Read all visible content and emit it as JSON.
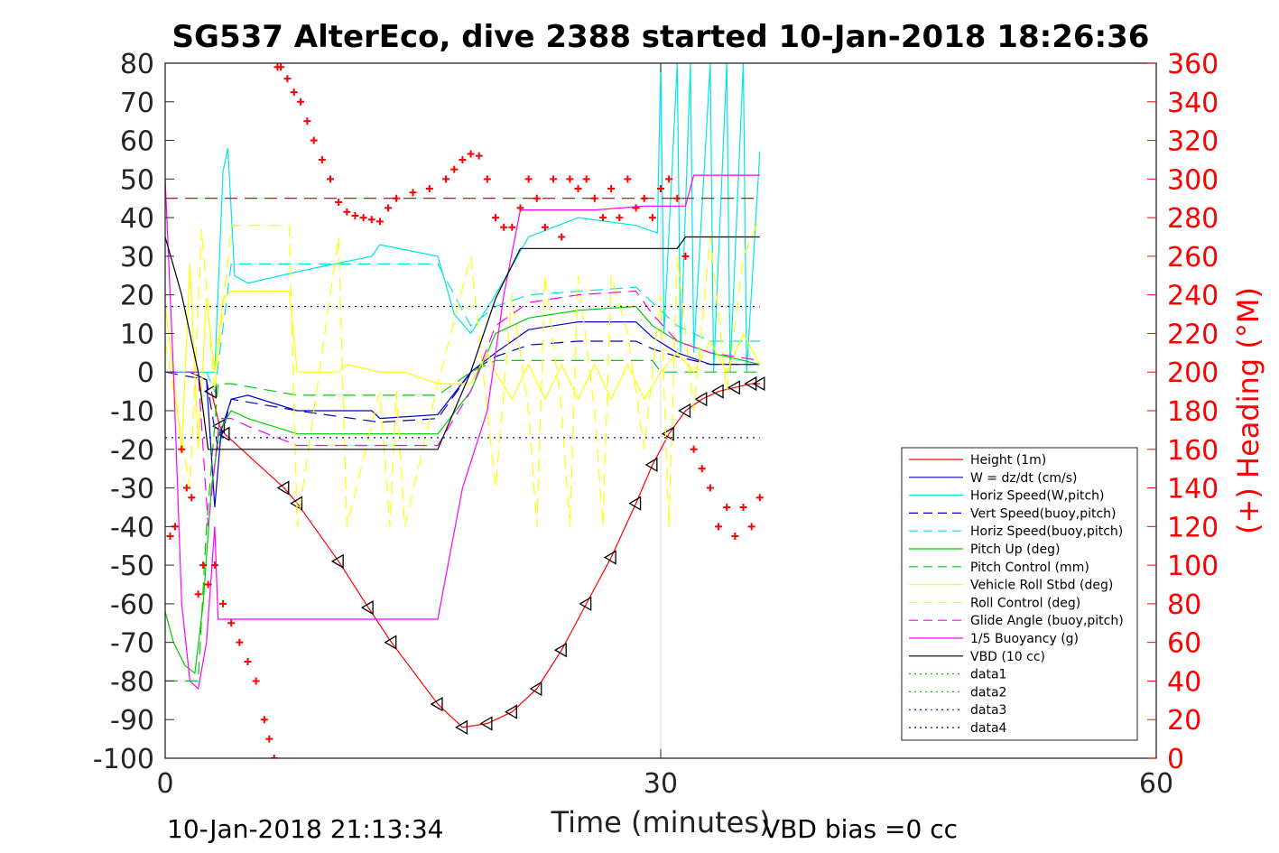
{
  "page": {
    "footer_left": "10-Jan-2018 21:13:34",
    "footer_right": "VBD bias =0 cc"
  },
  "chart_data": {
    "type": "line",
    "title": "SG537 AlterEco, dive 2388 started 10-Jan-2018 18:26:36",
    "xlabel": "Time (minutes)",
    "ylabel": "",
    "ylabel_right": "(+) Heading (°M)",
    "xlim": [
      0,
      60
    ],
    "ylim": [
      -100,
      80
    ],
    "ylim_right": [
      0,
      360
    ],
    "x_ticks": [
      0,
      30,
      60
    ],
    "y_ticks": [
      -100,
      -90,
      -80,
      -70,
      -60,
      -50,
      -40,
      -30,
      -20,
      -10,
      0,
      10,
      20,
      30,
      40,
      50,
      60,
      70,
      80
    ],
    "y_ticks_right": [
      0,
      20,
      40,
      60,
      80,
      100,
      120,
      140,
      160,
      180,
      200,
      220,
      240,
      260,
      280,
      300,
      320,
      340,
      360
    ],
    "x_gridlines": [
      30
    ],
    "legend_position": "lower-right",
    "colors": {
      "height": "#ff0000",
      "w": "#0000cc",
      "horiz_w": "#00e5e5",
      "vert_buoy": "#0000cc",
      "horiz_buoy": "#00e5e5",
      "pitch_up": "#00cc00",
      "pitch_ctrl": "#00cc00",
      "roll": "#ffff00",
      "roll_ctrl": "#ffff00",
      "glide": "#ff00ff",
      "buoyancy": "#ff00ff",
      "vbd": "#000000",
      "heading": "#ff0000",
      "data3": "#0000aa",
      "data4": "#0000aa",
      "heading_ref": "#b00000"
    },
    "legend": [
      {
        "label": "Height (1m)",
        "color": "#ff0000",
        "style": "solid"
      },
      {
        "label": "W = dz/dt (cm/s)",
        "color": "#0000cc",
        "style": "solid"
      },
      {
        "label": "Horiz Speed(W,pitch)",
        "color": "#00e5e5",
        "style": "solid"
      },
      {
        "label": "Vert Speed(buoy,pitch)",
        "color": "#0000cc",
        "style": "dashed"
      },
      {
        "label": "Horiz Speed(buoy,pitch)",
        "color": "#00e5e5",
        "style": "dashed"
      },
      {
        "label": "Pitch Up (deg)",
        "color": "#00cc00",
        "style": "solid"
      },
      {
        "label": "Pitch Control (mm)",
        "color": "#00cc00",
        "style": "dashed"
      },
      {
        "label": "Vehicle Roll Stbd (deg)",
        "color": "#ffff00",
        "style": "solid"
      },
      {
        "label": "Roll Control (deg)",
        "color": "#ffff00",
        "style": "dashed"
      },
      {
        "label": "Glide Angle (buoy,pitch)",
        "color": "#ff00ff",
        "style": "dashed"
      },
      {
        "label": "1/5 Buoyancy (g)",
        "color": "#ff00ff",
        "style": "solid"
      },
      {
        "label": "VBD (10 cc)",
        "color": "#000000",
        "style": "solid"
      },
      {
        "label": "data1",
        "color": "#00cc00",
        "style": "dotted"
      },
      {
        "label": "data2",
        "color": "#00cc00",
        "style": "dotted"
      },
      {
        "label": "data3",
        "color": "#0000aa",
        "style": "dotted"
      },
      {
        "label": "data4",
        "color": "#0000aa",
        "style": "dotted"
      }
    ],
    "series": [
      {
        "key": "height",
        "name": "Height (1m)",
        "markers": "triangle",
        "x": [
          2.8,
          3.3,
          3.6,
          7.2,
          8.0,
          10.5,
          12.3,
          13.7,
          16.5,
          18.0,
          19.5,
          21.0,
          22.5,
          24.0,
          25.5,
          27.0,
          28.5,
          29.5,
          30.5,
          31.5,
          32.5,
          33.5,
          34.5,
          35.5,
          36.0
        ],
        "y": [
          -5,
          -14,
          -16,
          -30,
          -34,
          -49,
          -61,
          -70,
          -86,
          -92,
          -91,
          -88,
          -82,
          -72,
          -60,
          -48,
          -34,
          -24,
          -16,
          -10,
          -7,
          -5,
          -4,
          -3,
          -3
        ]
      },
      {
        "key": "w",
        "name": "W = dz/dt (cm/s)",
        "x": [
          0,
          1.5,
          2.5,
          3.0,
          3.4,
          4.0,
          5.0,
          8.0,
          12.5,
          13.0,
          16.5,
          18.5,
          20.0,
          22.0,
          25.0,
          28.5,
          29.5,
          31.0,
          33.0,
          36.0
        ],
        "y": [
          0,
          0,
          -2,
          -35,
          -15,
          -7,
          -6,
          -10,
          -10,
          -12,
          -11,
          0,
          5,
          11,
          13,
          13,
          9,
          5,
          2,
          2
        ]
      },
      {
        "key": "horiz_w",
        "name": "Horiz Speed(W,pitch)",
        "x": [
          0,
          1.5,
          2.5,
          3.0,
          3.5,
          3.8,
          4.2,
          5.0,
          8.0,
          12.5,
          13.0,
          16.5,
          17.5,
          18.5,
          20.0,
          22.0,
          25.0,
          28.5,
          29.8,
          30.0,
          30.2,
          31.0,
          31.2,
          31.8,
          32.0,
          33.0,
          33.2,
          34.0,
          34.2,
          35.0,
          35.2,
          36.0
        ],
        "y": [
          0,
          0,
          0,
          0,
          52,
          58,
          25,
          23,
          26,
          30,
          33,
          30,
          15,
          10,
          20,
          35,
          40,
          38,
          36,
          80,
          10,
          80,
          5,
          80,
          5,
          80,
          0,
          80,
          0,
          80,
          0,
          57
        ]
      },
      {
        "key": "vert_buoy",
        "name": "Vert Speed(buoy,pitch)",
        "dashed": true,
        "x": [
          0,
          2.5,
          3.2,
          4.0,
          8.0,
          13.0,
          16.5,
          18.5,
          20.0,
          22.0,
          25.0,
          28.5,
          29.5,
          31.0,
          33.0,
          36.0
        ],
        "y": [
          0,
          -2,
          -20,
          -7,
          -10,
          -13,
          -12,
          0,
          4,
          7,
          8,
          8,
          6,
          4,
          2,
          2
        ]
      },
      {
        "key": "horiz_buoy",
        "name": "Horiz Speed(buoy,pitch)",
        "dashed": true,
        "x": [
          0,
          2.5,
          3.0,
          4.0,
          16.5,
          18.5,
          20.0,
          22.0,
          28.5,
          29.5,
          31.0,
          33.0,
          36.0
        ],
        "y": [
          0,
          0,
          -5,
          28,
          28,
          12,
          17,
          20,
          22,
          18,
          12,
          8,
          8
        ]
      },
      {
        "key": "pitch_up",
        "name": "Pitch Up (deg)",
        "x": [
          0,
          0.5,
          1.2,
          1.8,
          2.3,
          2.8,
          3.3,
          4.0,
          5.0,
          8.0,
          12.5,
          16.5,
          18.5,
          20.0,
          22.0,
          25.0,
          28.5,
          29.5,
          31.0,
          33.0,
          36.0
        ],
        "y": [
          -62,
          -70,
          -76,
          -78,
          -60,
          -30,
          -15,
          -10,
          -12,
          -16,
          -16,
          -16,
          -5,
          10,
          14,
          16,
          17,
          12,
          8,
          5,
          2
        ]
      },
      {
        "key": "pitch_ctrl",
        "name": "Pitch Control (mm)",
        "dashed": true,
        "x": [
          0,
          2.0,
          2.5,
          3.2,
          4.0,
          8.0,
          16.5,
          18.5,
          20.0,
          25.0,
          29.5,
          30.0,
          36.0
        ],
        "y": [
          -80,
          -80,
          -40,
          -3,
          -3,
          -6,
          -6,
          0,
          3,
          3,
          3,
          0,
          0
        ]
      },
      {
        "key": "roll",
        "name": "Vehicle Roll Stbd (deg)",
        "x": [
          0,
          1.0,
          1.5,
          2.0,
          2.5,
          3.0,
          3.5,
          4.0,
          7.5,
          8.0,
          10.5,
          11.0,
          13.0,
          14.5,
          16.5,
          18.5,
          19.5,
          20.0,
          21.0,
          22.0,
          23.0,
          24.0,
          25.0,
          26.0,
          27.0,
          28.0,
          29.0,
          30.0,
          31.0,
          32.0,
          33.0,
          34.0,
          35.0,
          36.0
        ],
        "y": [
          18,
          -20,
          28,
          -20,
          19,
          0,
          19,
          21,
          21,
          0,
          0,
          2,
          0,
          0,
          -3,
          -3,
          5,
          0,
          -7,
          2,
          -7,
          2,
          -7,
          2,
          -7,
          2,
          -7,
          0,
          5,
          0,
          8,
          0,
          10,
          2
        ]
      },
      {
        "key": "roll_ctrl",
        "name": "Roll Control (deg)",
        "dashed": true,
        "x": [
          0,
          1.5,
          2.2,
          3.0,
          4.0,
          7.5,
          8.0,
          10.5,
          11.0,
          13.0,
          13.6,
          14.0,
          14.5,
          16.5,
          18.5,
          19.5,
          20.0,
          21.0,
          22.0,
          22.5,
          23.0,
          24.0,
          24.5,
          25.0,
          26.0,
          26.5,
          27.0,
          28.0,
          29.0,
          30.0,
          30.5,
          31.0,
          32.0,
          33.0,
          34.0,
          35.0,
          36.0
        ],
        "y": [
          8,
          -30,
          37,
          -5,
          38,
          38,
          -40,
          35,
          -40,
          -5,
          -40,
          -5,
          -40,
          -3,
          30,
          -10,
          -30,
          20,
          -10,
          -40,
          25,
          -10,
          -40,
          25,
          -10,
          -40,
          25,
          10,
          -20,
          20,
          -40,
          30,
          -10,
          35,
          -5,
          30,
          40
        ]
      },
      {
        "key": "glide",
        "name": "Glide Angle (buoy,pitch)",
        "dashed": true,
        "x": [
          0,
          2.0,
          2.6,
          3.3,
          4.0,
          5.0,
          8.0,
          12.5,
          16.5,
          18.5,
          20.0,
          22.0,
          25.0,
          28.5,
          29.5,
          31.0,
          33.0,
          36.0
        ],
        "y": [
          0,
          0,
          -40,
          -12,
          -12,
          -14,
          -19,
          -19,
          -19,
          -5,
          12,
          18,
          20,
          21,
          15,
          8,
          5,
          3
        ]
      },
      {
        "key": "buoyancy",
        "name": "1/5 Buoyancy (g)",
        "x": [
          0,
          0.5,
          1.0,
          1.5,
          2.0,
          2.5,
          3.0,
          3.2,
          5.0,
          10.0,
          16.5,
          18.0,
          19.5,
          20.5,
          21.5,
          23.0,
          26.0,
          29.0,
          31.5,
          32.0,
          33.0,
          36.0
        ],
        "y": [
          50,
          0,
          -60,
          -80,
          -82,
          -70,
          -40,
          -64,
          -64,
          -64,
          -64,
          -30,
          -10,
          20,
          42,
          42,
          42,
          43,
          43,
          51,
          51,
          51
        ]
      },
      {
        "key": "vbd",
        "name": "VBD (10 cc)",
        "x": [
          0,
          1.0,
          2.0,
          2.6,
          2.8,
          16.5,
          18.5,
          20.0,
          21.5,
          22.0,
          31.0,
          31.5,
          36.0
        ],
        "y": [
          35,
          20,
          0,
          -20,
          -20,
          -20,
          0,
          19,
          32,
          32,
          32,
          35,
          35
        ]
      },
      {
        "key": "heading",
        "name": "(+) Heading (°M)",
        "axis": "right",
        "markers": "plus",
        "x": [
          0.3,
          0.6,
          1.0,
          1.3,
          1.6,
          2.0,
          2.3,
          2.6,
          3.0,
          3.5,
          4.0,
          4.5,
          5.0,
          5.5,
          6.0,
          6.3,
          6.6,
          6.8,
          7.0,
          7.4,
          7.8,
          8.2,
          8.6,
          9.0,
          9.5,
          10.0,
          10.5,
          11.0,
          11.5,
          12.0,
          12.5,
          13.0,
          13.5,
          14.0,
          15.0,
          16.0,
          17.0,
          17.5,
          18.0,
          18.5,
          19.0,
          19.5,
          20.0,
          20.5,
          21.0,
          21.5,
          22.0,
          22.5,
          23.0,
          23.5,
          24.0,
          24.5,
          25.0,
          25.5,
          26.0,
          26.5,
          27.0,
          27.5,
          28.0,
          28.5,
          29.0,
          29.5,
          30.0,
          30.5,
          31.0,
          31.5,
          32.0,
          32.5,
          33.0,
          33.5,
          34.0,
          34.5,
          35.0,
          35.5,
          36.0
        ],
        "y": [
          115,
          120,
          160,
          140,
          135,
          85,
          100,
          90,
          100,
          80,
          70,
          60,
          50,
          40,
          20,
          10,
          0,
          358,
          358,
          352,
          345,
          340,
          330,
          320,
          310,
          300,
          288,
          283,
          281,
          280,
          279,
          278,
          285,
          290,
          293,
          295,
          300,
          305,
          310,
          313,
          312,
          300,
          280,
          275,
          275,
          285,
          300,
          290,
          275,
          300,
          270,
          300,
          295,
          300,
          290,
          280,
          295,
          280,
          300,
          285,
          290,
          280,
          295,
          300,
          290,
          260,
          160,
          150,
          140,
          120,
          130,
          115,
          130,
          120,
          135
        ]
      },
      {
        "key": "data3",
        "name": "data3",
        "dotted": true,
        "x": [
          0,
          36
        ],
        "y": [
          17,
          17
        ]
      },
      {
        "key": "data4",
        "name": "data4",
        "dotted": true,
        "x": [
          0,
          36
        ],
        "y": [
          -17,
          -17
        ]
      },
      {
        "key": "heading_ref",
        "name": "",
        "axis": "right",
        "dashed": true,
        "x": [
          0,
          36
        ],
        "y": [
          290,
          290
        ]
      }
    ]
  }
}
